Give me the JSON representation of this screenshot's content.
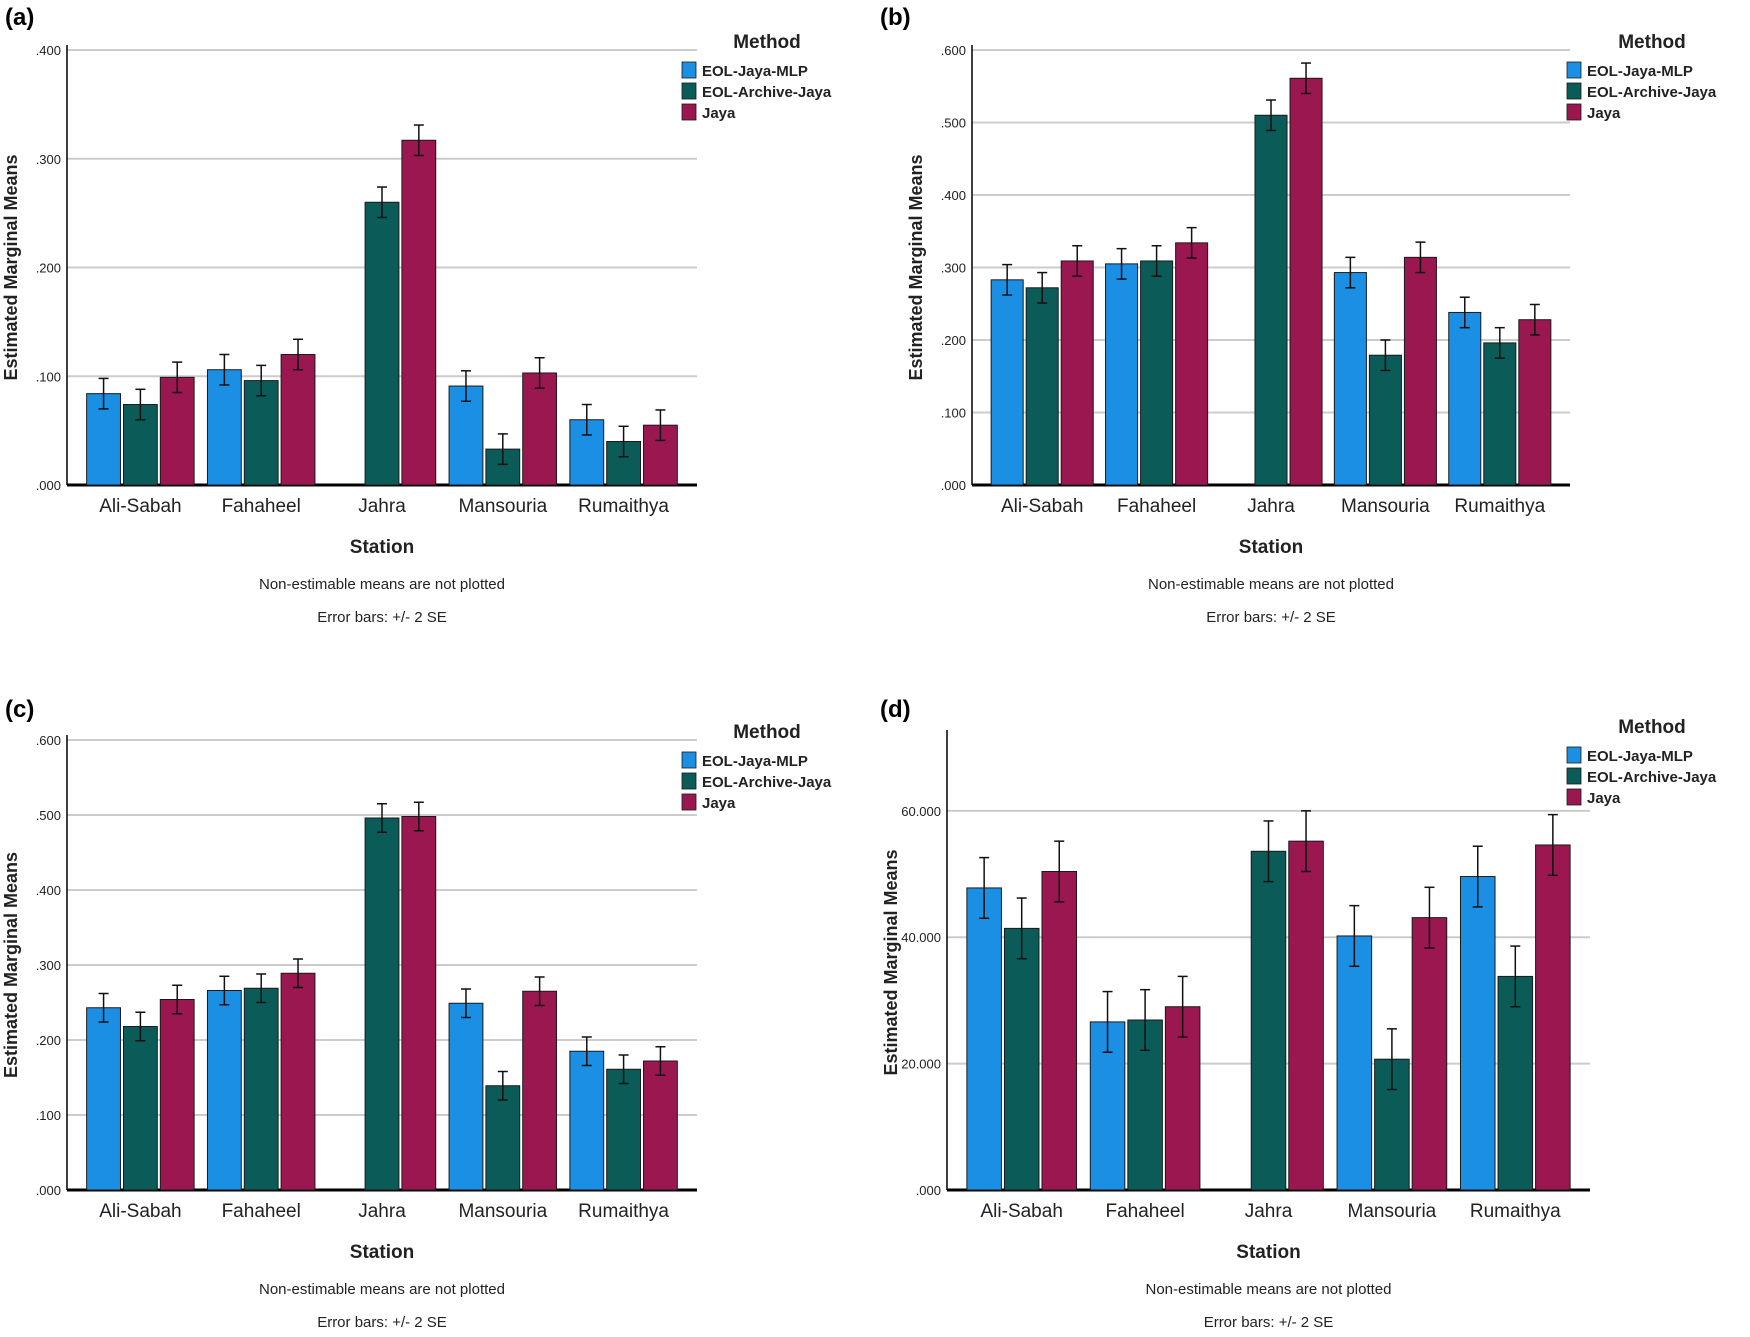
{
  "figure": {
    "colors": {
      "EOL-Jaya-MLP": "#1a8fe3",
      "EOL-Archive-Jaya": "#0b5c58",
      "Jaya": "#9a1750",
      "grid": "#cccccc",
      "axis": "#000000",
      "text": "#222222"
    }
  },
  "chart_data": [
    {
      "panel_label": "(a)",
      "type": "bar",
      "xlabel": "Station",
      "ylabel": "Estimated Marginal Means",
      "categories": [
        "Ali-Sabah",
        "Fahaheel",
        "Jahra",
        "Mansouria",
        "Rumaithya"
      ],
      "ylim": [
        0,
        0.4
      ],
      "ticks": [
        ".000",
        ".100",
        ".200",
        ".300",
        ".400"
      ],
      "tick_values": [
        0,
        0.1,
        0.2,
        0.3,
        0.4
      ],
      "legend_title": "Method",
      "note1": "Non-estimable means are not plotted",
      "note2": "Error bars: +/- 2 SE",
      "series": [
        {
          "name": "EOL-Jaya-MLP",
          "values": [
            0.084,
            0.106,
            null,
            0.091,
            0.06
          ],
          "err": [
            0.014,
            0.014,
            null,
            0.014,
            0.014
          ]
        },
        {
          "name": "EOL-Archive-Jaya",
          "values": [
            0.074,
            0.096,
            0.26,
            0.033,
            0.04
          ],
          "err": [
            0.014,
            0.014,
            0.014,
            0.014,
            0.014
          ]
        },
        {
          "name": "Jaya",
          "values": [
            0.099,
            0.12,
            0.317,
            0.103,
            0.055
          ],
          "err": [
            0.014,
            0.014,
            0.014,
            0.014,
            0.014
          ]
        }
      ]
    },
    {
      "panel_label": "(b)",
      "type": "bar",
      "xlabel": "Station",
      "ylabel": "Estimated Marginal Means",
      "categories": [
        "Ali-Sabah",
        "Fahaheel",
        "Jahra",
        "Mansouria",
        "Rumaithya"
      ],
      "ylim": [
        0,
        0.6
      ],
      "ticks": [
        ".000",
        ".100",
        ".200",
        ".300",
        ".400",
        ".500",
        ".600"
      ],
      "tick_values": [
        0,
        0.1,
        0.2,
        0.3,
        0.4,
        0.5,
        0.6
      ],
      "legend_title": "Method",
      "note1": "Non-estimable means are not plotted",
      "note2": "Error bars: +/- 2 SE",
      "series": [
        {
          "name": "EOL-Jaya-MLP",
          "values": [
            0.283,
            0.305,
            null,
            0.293,
            0.238
          ],
          "err": [
            0.021,
            0.021,
            null,
            0.021,
            0.021
          ]
        },
        {
          "name": "EOL-Archive-Jaya",
          "values": [
            0.272,
            0.309,
            0.51,
            0.179,
            0.196
          ],
          "err": [
            0.021,
            0.021,
            0.021,
            0.021,
            0.021
          ]
        },
        {
          "name": "Jaya",
          "values": [
            0.309,
            0.334,
            0.561,
            0.314,
            0.228
          ],
          "err": [
            0.021,
            0.021,
            0.021,
            0.021,
            0.021
          ]
        }
      ]
    },
    {
      "panel_label": "(c)",
      "type": "bar",
      "xlabel": "Station",
      "ylabel": "Estimated Marginal Means",
      "categories": [
        "Ali-Sabah",
        "Fahaheel",
        "Jahra",
        "Mansouria",
        "Rumaithya"
      ],
      "ylim": [
        0,
        0.6
      ],
      "ticks": [
        ".000",
        ".100",
        ".200",
        ".300",
        ".400",
        ".500",
        ".600"
      ],
      "tick_values": [
        0,
        0.1,
        0.2,
        0.3,
        0.4,
        0.5,
        0.6
      ],
      "legend_title": "Method",
      "note1": "Non-estimable means are not plotted",
      "note2": "Error bars: +/- 2 SE",
      "series": [
        {
          "name": "EOL-Jaya-MLP",
          "values": [
            0.243,
            0.266,
            null,
            0.249,
            0.185
          ],
          "err": [
            0.019,
            0.019,
            null,
            0.019,
            0.019
          ]
        },
        {
          "name": "EOL-Archive-Jaya",
          "values": [
            0.218,
            0.269,
            0.496,
            0.139,
            0.161
          ],
          "err": [
            0.019,
            0.019,
            0.019,
            0.019,
            0.019
          ]
        },
        {
          "name": "Jaya",
          "values": [
            0.254,
            0.289,
            0.498,
            0.265,
            0.172
          ],
          "err": [
            0.019,
            0.019,
            0.019,
            0.019,
            0.019
          ]
        }
      ]
    },
    {
      "panel_label": "(d)",
      "type": "bar",
      "xlabel": "Station",
      "ylabel": "Estimated Marginal Means",
      "categories": [
        "Ali-Sabah",
        "Fahaheel",
        "Jahra",
        "Mansouria",
        "Rumaithya"
      ],
      "ylim": [
        0,
        72
      ],
      "ticks": [
        ".000",
        "20.000",
        "40.000",
        "60.000"
      ],
      "tick_values": [
        0,
        20,
        40,
        60
      ],
      "legend_title": "Method",
      "note1": "Non-estimable means are not plotted",
      "note2": "Error bars: +/- 2 SE",
      "series": [
        {
          "name": "EOL-Jaya-MLP",
          "values": [
            47.8,
            26.6,
            null,
            40.2,
            49.6
          ],
          "err": [
            4.8,
            4.8,
            null,
            4.8,
            4.8
          ]
        },
        {
          "name": "EOL-Archive-Jaya",
          "values": [
            41.4,
            26.9,
            53.6,
            20.7,
            33.8
          ],
          "err": [
            4.8,
            4.8,
            4.8,
            4.8,
            4.8
          ]
        },
        {
          "name": "Jaya",
          "values": [
            50.4,
            29.0,
            55.2,
            43.1,
            54.6
          ],
          "err": [
            4.8,
            4.8,
            4.8,
            4.8,
            4.8
          ]
        }
      ]
    }
  ]
}
